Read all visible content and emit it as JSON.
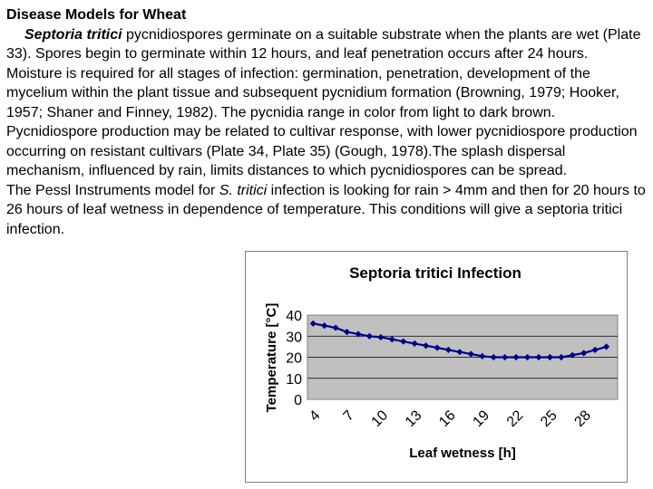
{
  "document": {
    "title": "Disease Models for Wheat",
    "p1_species": "Septoria tritici",
    "p1_text": " pycnidiospores germinate on a suitable substrate when the plants are wet (Plate 33). Spores begin to germinate within 12 hours, and leaf penetration occurs after 24 hours. Moisture is required for all stages of infection: germination, penetration, development of the mycelium within the plant tissue and subsequent pycnidium formation (Browning, 1979; Hooker, 1957; Shaner and Finney, 1982). The pycnidia range in color from light to dark brown. Pycnidiospore production may be related to cultivar response, with lower pycnidiospore production occurring on resistant cultivars (Plate 34, Plate 35) (Gough, 1978).The splash dispersal mechanism, influenced by rain, limits distances to which pycnidiospores can be spread.",
    "p2_text_before": "The Pessl Instruments model for ",
    "p2_species": "S. tritici",
    "p2_text_after": " infection is looking for rain > 4mm and then for 20 hours to 26 hours of leaf wetness in dependence of temperature. This conditions will give a septoria tritici infection."
  },
  "chart_data": {
    "type": "line",
    "title": "Septoria tritici Infection",
    "xlabel": "Leaf wetness [h]",
    "ylabel": "Temperature [°C]",
    "ylim": [
      0,
      40
    ],
    "yticks": [
      0,
      10,
      20,
      30,
      40
    ],
    "xticks": [
      4,
      7,
      10,
      13,
      16,
      19,
      22,
      25,
      28
    ],
    "grid": true,
    "legend": "none",
    "series": [
      {
        "x": [
          4,
          5,
          6,
          7,
          8,
          9,
          10,
          11,
          12,
          13,
          14,
          15,
          16,
          17,
          18,
          19,
          20,
          21,
          22,
          23,
          24,
          25,
          26,
          27,
          28,
          29,
          30
        ],
        "values": [
          36,
          35,
          34,
          32,
          31,
          30,
          29.5,
          28.5,
          27.5,
          26.5,
          25.5,
          24.5,
          23.5,
          22.5,
          21.5,
          20.5,
          20,
          20,
          20,
          20,
          20,
          20,
          20,
          21,
          22,
          23.5,
          25
        ],
        "color": "#00008B"
      }
    ],
    "colors": {
      "plot_bg": "#C0C0C0",
      "line": "#00008B"
    }
  }
}
